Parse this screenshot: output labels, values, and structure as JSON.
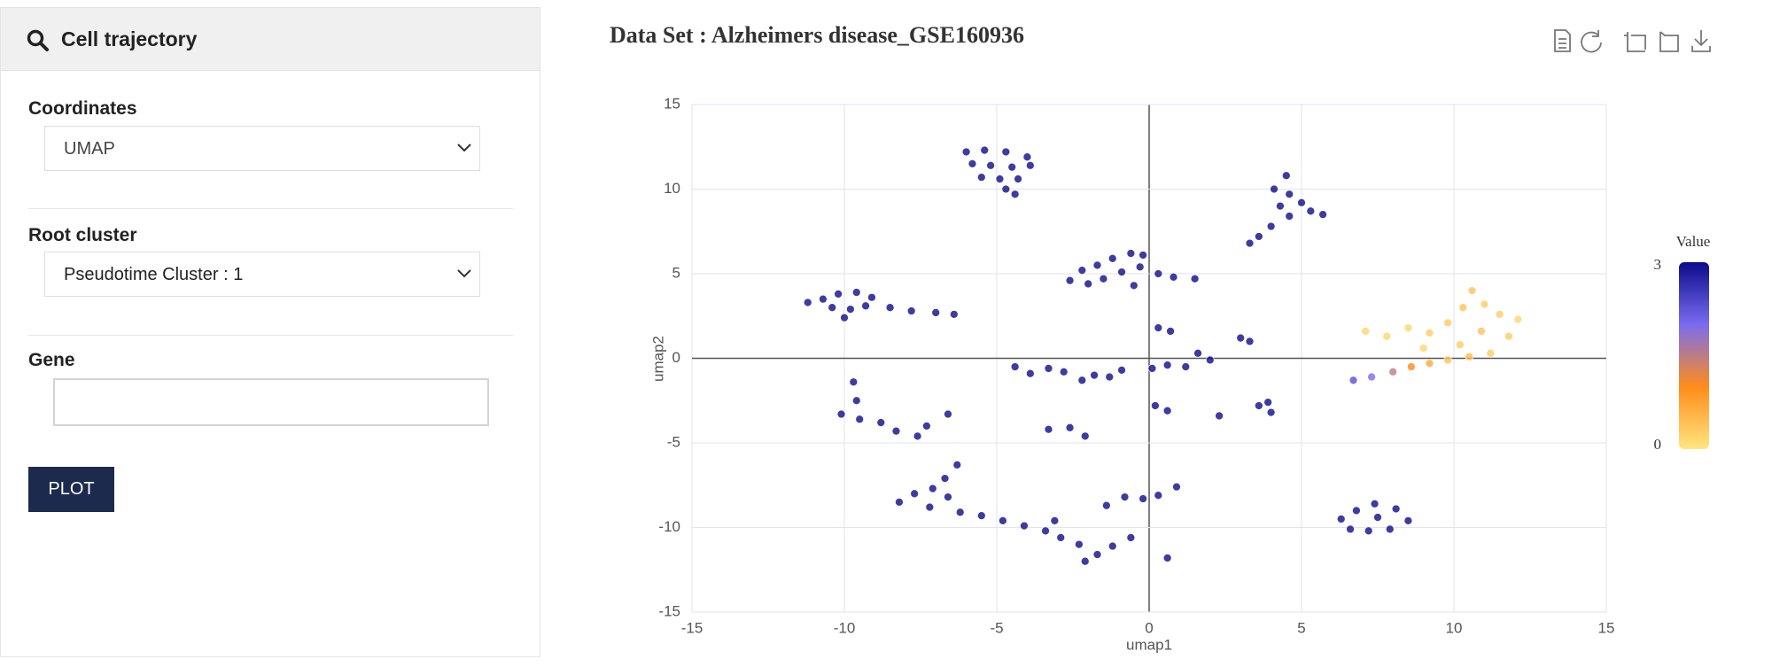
{
  "sidebar": {
    "title": "Cell trajectory",
    "coordinates": {
      "label": "Coordinates",
      "value": "UMAP"
    },
    "root_cluster": {
      "label": "Root cluster",
      "value": "Pseudotime Cluster : 1"
    },
    "gene": {
      "label": "Gene"
    },
    "button": "PLOT"
  },
  "chart_data": {
    "type": "scatter",
    "title": "Data Set : Alzheimers disease_GSE160936",
    "x_label": "umap1",
    "y_label": "umap2",
    "xlim": [
      -15,
      15
    ],
    "ylim": [
      -15,
      15
    ],
    "xticks": [
      -15,
      -10,
      -5,
      0,
      5,
      10,
      15
    ],
    "yticks": [
      -15,
      -10,
      -5,
      0,
      5,
      10,
      15
    ],
    "grid": true,
    "colorbar": {
      "title": "Value",
      "lim": [
        0,
        3
      ],
      "ticks": [
        0,
        3
      ],
      "colors": [
        "#ffe680",
        "#ff8c1a",
        "#7a6cf0",
        "#0b0b8a"
      ]
    },
    "series": [
      {
        "x": [
          -6,
          -5.4,
          -4.7,
          -4,
          -5.8,
          -5.2,
          -4.5,
          -3.9,
          -5.5,
          -4.9,
          -4.3,
          -4.7,
          -4.4,
          4.5,
          4.1,
          4.6,
          5,
          4.3,
          5.3,
          5.7,
          4.6,
          4,
          3.6,
          3.3,
          -2.6,
          -2.2,
          -1.7,
          -1.2,
          -0.6,
          -0.2,
          -1.5,
          -0.9,
          -0.3,
          0.3,
          0.8,
          1.5,
          -2,
          -0.5,
          -11.2,
          -10.7,
          -10.2,
          -9.6,
          -9.1,
          -10.4,
          -9.8,
          -9.3,
          -10,
          -8.5,
          -7.8,
          -7,
          -6.4,
          6.7,
          7.3,
          8,
          8.6,
          9.2,
          9.8,
          7.1,
          7.8,
          8.5,
          9.2,
          9.8,
          10.3,
          10.6,
          11,
          11.5,
          12.1,
          11.8,
          10.9,
          10.2,
          11.2,
          10.5,
          9,
          0.3,
          0.7,
          0.1,
          0.6,
          1.2,
          1.6,
          2,
          3,
          3.3,
          0.2,
          0.6,
          2.3,
          -4.4,
          -3.9,
          -3.3,
          -2.8,
          -2.2,
          -1.8,
          -1.3,
          -0.9,
          -9.7,
          -9.6,
          -10.1,
          -9.5,
          -8.8,
          -8.3,
          -7.6,
          -7.3,
          -6.6,
          3.6,
          3.9,
          4,
          -3.3,
          -2.6,
          -2.1,
          -8.2,
          -7.7,
          -7.1,
          -6.6,
          -7.2,
          -6.2,
          -5.5,
          -4.8,
          -4.1,
          -3.4,
          -2.9,
          -2.3,
          -1.7,
          -2.1,
          -1.2,
          -0.6,
          -3.1,
          -1.4,
          -0.8,
          -0.2,
          0.3,
          0.9,
          -6.3,
          -6.7,
          6.3,
          6.8,
          7.4,
          8.1,
          8.5,
          7.9,
          7.2,
          6.6,
          7.5,
          0.6
        ],
        "y": [
          12.2,
          12.3,
          12.2,
          11.9,
          11.5,
          11.4,
          11.3,
          11.4,
          10.7,
          10.6,
          10.6,
          10,
          9.7,
          10.8,
          10,
          9.7,
          9.2,
          9,
          8.7,
          8.5,
          8.4,
          7.8,
          7.2,
          6.8,
          4.6,
          5.2,
          5.5,
          5.9,
          6.2,
          6.1,
          4.7,
          5.1,
          5.4,
          5,
          4.8,
          4.7,
          4.4,
          4.3,
          3.3,
          3.5,
          3.8,
          3.9,
          3.6,
          3,
          2.9,
          3.1,
          2.4,
          3,
          2.8,
          2.7,
          2.6,
          -1.3,
          -1.1,
          -0.8,
          -0.5,
          -0.3,
          -0.1,
          1.6,
          1.3,
          1.8,
          1.5,
          2.1,
          3,
          4,
          3.2,
          2.6,
          2.3,
          1.3,
          1.6,
          0.8,
          0.3,
          0.1,
          0.6,
          1.8,
          1.6,
          -0.6,
          -0.4,
          -0.5,
          0.3,
          -0.1,
          1.2,
          1,
          -2.8,
          -3.1,
          -3.4,
          -0.5,
          -0.9,
          -0.6,
          -0.8,
          -1.3,
          -1,
          -1.1,
          -0.7,
          -1.4,
          -2.5,
          -3.3,
          -3.6,
          -3.8,
          -4.3,
          -4.6,
          -4,
          -3.3,
          -2.8,
          -2.6,
          -3.2,
          -4.2,
          -4.1,
          -4.6,
          -8.5,
          -8,
          -7.7,
          -8.2,
          -8.8,
          -9.1,
          -9.3,
          -9.6,
          -9.9,
          -10.2,
          -10.6,
          -11,
          -11.6,
          -12,
          -11.1,
          -10.6,
          -9.6,
          -8.7,
          -8.2,
          -8.3,
          -8.1,
          -7.6,
          -6.3,
          -7.1,
          -9.5,
          -9,
          -8.6,
          -8.9,
          -9.6,
          -10.1,
          -10.2,
          -10.1,
          -9.4,
          -11.8
        ],
        "values": [
          3,
          3,
          3,
          3,
          3,
          3,
          3,
          3,
          3,
          3,
          3,
          3,
          3,
          3,
          3,
          3,
          3,
          3,
          3,
          3,
          3,
          3,
          3,
          3,
          3,
          3,
          3,
          3,
          3,
          3,
          3,
          3,
          3,
          3,
          3,
          3,
          3,
          3,
          3,
          3,
          3,
          3,
          3,
          3,
          3,
          3,
          3,
          3,
          3,
          3,
          3,
          2.3,
          2,
          1.5,
          1,
          0.7,
          0.4,
          0.2,
          0.2,
          0.2,
          0.3,
          0.3,
          0.4,
          0.4,
          0.3,
          0.3,
          0.2,
          0.3,
          0.4,
          0.3,
          0.3,
          0.5,
          0.2,
          3,
          3,
          3,
          3,
          3,
          3,
          3,
          3,
          3,
          3,
          3,
          3,
          3,
          3,
          3,
          3,
          3,
          3,
          3,
          3,
          3,
          3,
          3,
          3,
          3,
          3,
          3,
          3,
          3,
          3,
          3,
          3,
          3,
          3,
          3,
          3,
          3,
          3,
          3,
          3,
          3,
          3,
          3,
          3,
          3,
          3,
          3,
          3,
          3,
          3,
          3,
          3,
          3,
          3,
          3,
          3,
          3,
          3,
          3,
          3,
          3,
          3,
          3,
          3,
          3,
          3,
          3,
          3,
          3
        ]
      }
    ]
  }
}
